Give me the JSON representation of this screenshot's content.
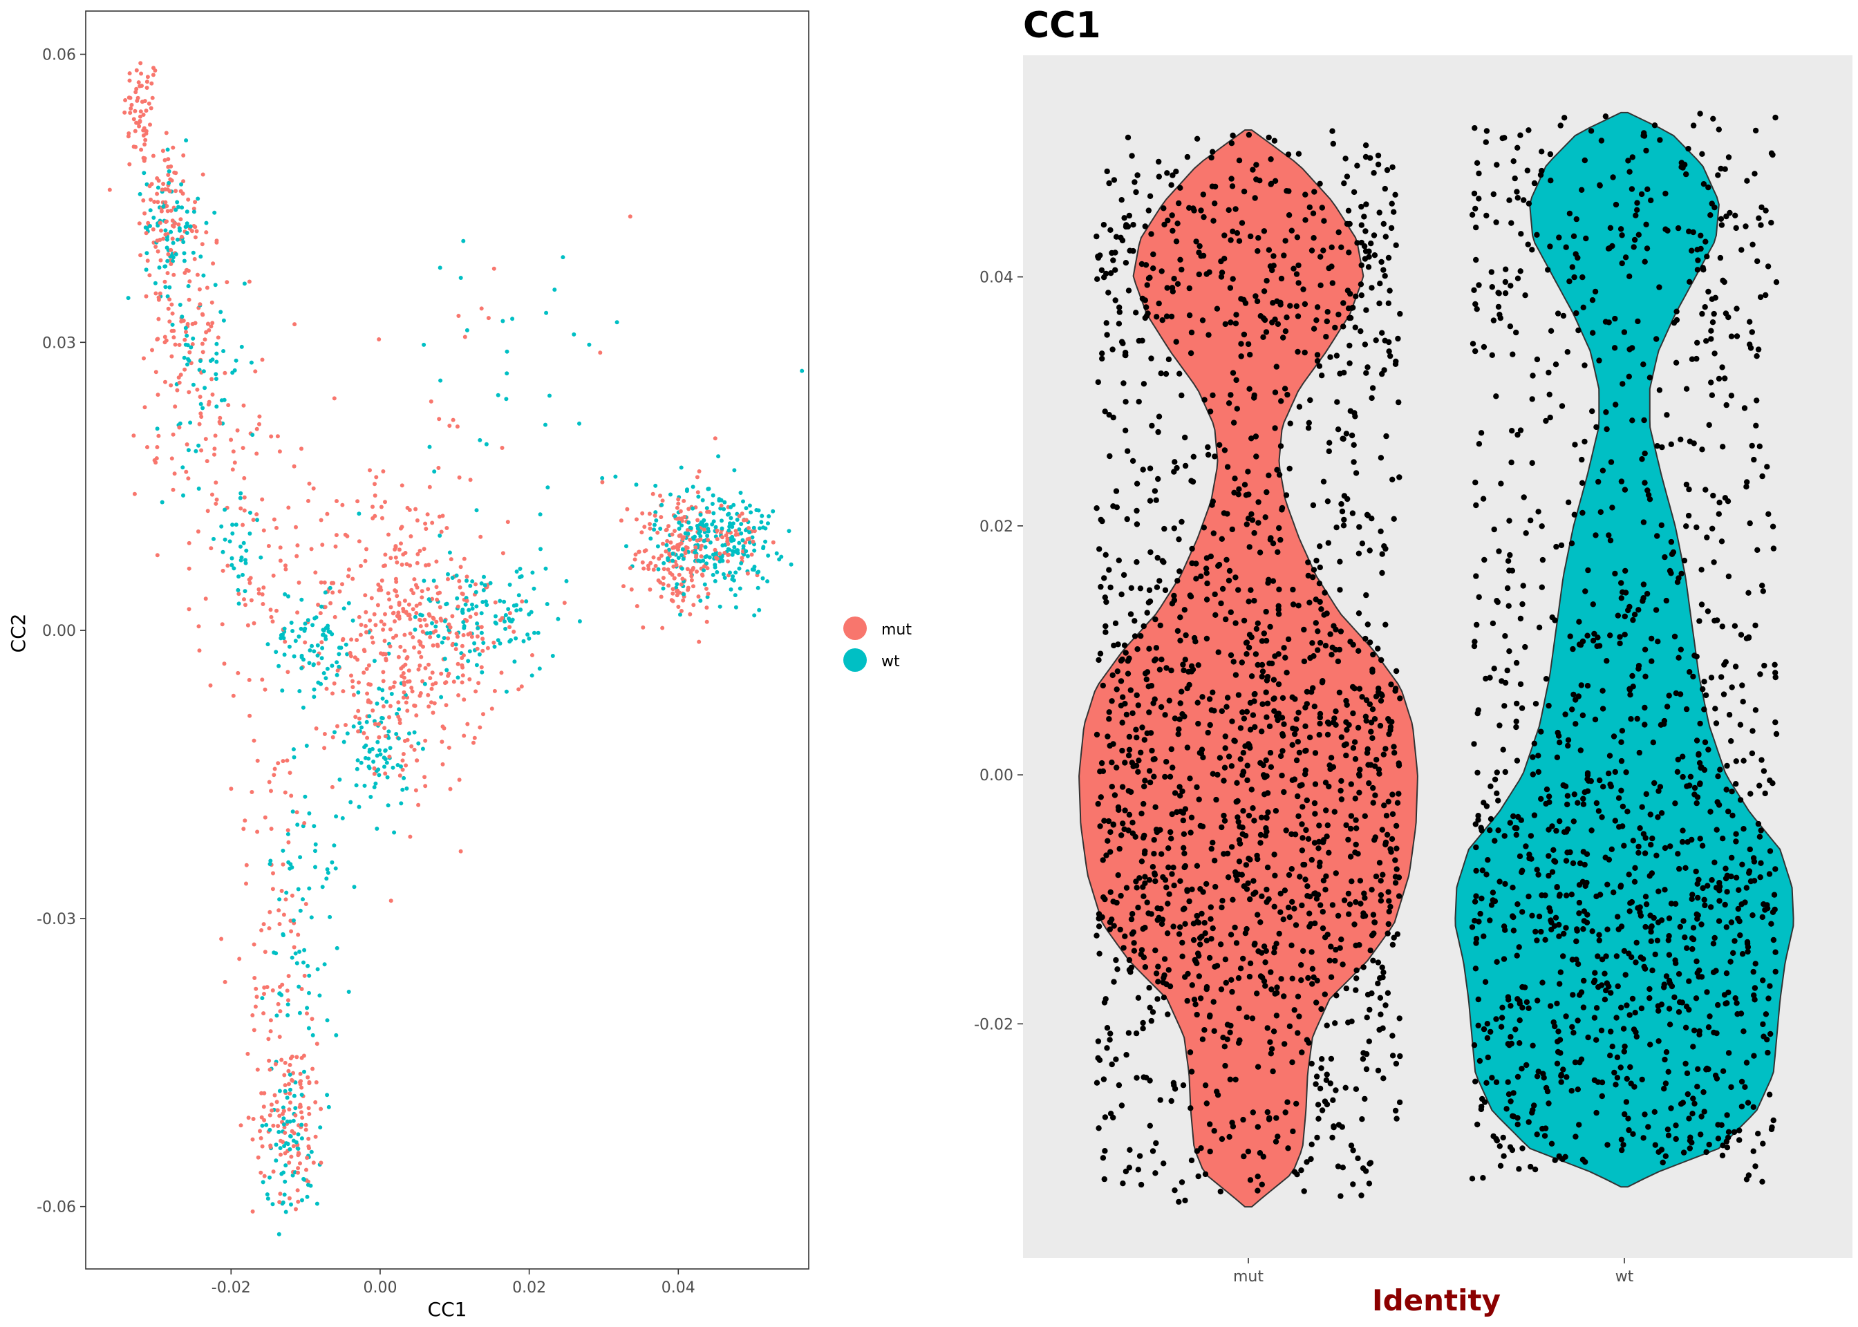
{
  "colors": {
    "mut": "#F8766D",
    "wt": "#00BFC4",
    "jitter_point": "#000000",
    "violin_outline": "#333333",
    "panel_background_right": "#EBEBEB",
    "identity_label": "#8B0000",
    "axis_text": "#4D4D4D"
  },
  "chart_data": [
    {
      "type": "scatter",
      "title": "",
      "xlabel": "CC1",
      "ylabel": "CC2",
      "xlim": [
        -0.0395,
        0.0575
      ],
      "ylim": [
        -0.0665,
        0.0645
      ],
      "x_ticks": [
        -0.02,
        0.0,
        0.02,
        0.04
      ],
      "x_tick_labels": [
        "-0.02",
        "0.00",
        "0.02",
        "0.04"
      ],
      "y_ticks": [
        -0.06,
        -0.03,
        0.0,
        0.03,
        0.06
      ],
      "y_tick_labels": [
        "-0.06",
        "-0.03",
        "0.00",
        "0.03",
        "0.06"
      ],
      "grid": false,
      "legend": {
        "position": "right",
        "entries": [
          {
            "label": "mut",
            "color": "#F8766D"
          },
          {
            "label": "wt",
            "color": "#00BFC4"
          }
        ]
      },
      "series": [
        {
          "name": "mut",
          "clusters": [
            {
              "cx": -0.032,
              "cy": 0.054,
              "sx": 0.0012,
              "sy": 0.003,
              "n": 60
            },
            {
              "cx": -0.029,
              "cy": 0.044,
              "sx": 0.0018,
              "sy": 0.004,
              "n": 80
            },
            {
              "cx": -0.026,
              "cy": 0.033,
              "sx": 0.0025,
              "sy": 0.006,
              "n": 90
            },
            {
              "cx": -0.023,
              "cy": 0.02,
              "sx": 0.004,
              "sy": 0.007,
              "n": 70
            },
            {
              "cx": -0.013,
              "cy": 0.005,
              "sx": 0.006,
              "sy": 0.006,
              "n": 90
            },
            {
              "cx": 0.002,
              "cy": 0.006,
              "sx": 0.004,
              "sy": 0.005,
              "n": 90
            },
            {
              "cx": 0.004,
              "cy": -0.005,
              "sx": 0.005,
              "sy": 0.006,
              "n": 220
            },
            {
              "cx": 0.009,
              "cy": 0.001,
              "sx": 0.006,
              "sy": 0.004,
              "n": 80
            },
            {
              "cx": 0.04,
              "cy": 0.008,
              "sx": 0.003,
              "sy": 0.0035,
              "n": 180
            },
            {
              "cx": 0.047,
              "cy": 0.0095,
              "sx": 0.0025,
              "sy": 0.002,
              "n": 40
            },
            {
              "cx": -0.014,
              "cy": -0.03,
              "sx": 0.003,
              "sy": 0.012,
              "n": 90
            },
            {
              "cx": -0.012,
              "cy": -0.051,
              "sx": 0.0025,
              "sy": 0.004,
              "n": 110
            },
            {
              "cx": 0.01,
              "cy": 0.02,
              "sx": 0.012,
              "sy": 0.015,
              "n": 30
            }
          ]
        },
        {
          "name": "wt",
          "clusters": [
            {
              "cx": -0.028,
              "cy": 0.042,
              "sx": 0.0018,
              "sy": 0.0035,
              "n": 70
            },
            {
              "cx": -0.024,
              "cy": 0.028,
              "sx": 0.003,
              "sy": 0.006,
              "n": 60
            },
            {
              "cx": -0.019,
              "cy": 0.008,
              "sx": 0.0015,
              "sy": 0.0025,
              "n": 30
            },
            {
              "cx": -0.009,
              "cy": -0.001,
              "sx": 0.003,
              "sy": 0.003,
              "n": 80
            },
            {
              "cx": 0.0,
              "cy": -0.012,
              "sx": 0.002,
              "sy": 0.004,
              "n": 80
            },
            {
              "cx": 0.014,
              "cy": 0.001,
              "sx": 0.005,
              "sy": 0.003,
              "n": 120
            },
            {
              "cx": 0.045,
              "cy": 0.0095,
              "sx": 0.004,
              "sy": 0.003,
              "n": 240
            },
            {
              "cx": -0.01,
              "cy": -0.03,
              "sx": 0.0025,
              "sy": 0.01,
              "n": 80
            },
            {
              "cx": -0.012,
              "cy": -0.053,
              "sx": 0.002,
              "sy": 0.004,
              "n": 70
            },
            {
              "cx": 0.015,
              "cy": 0.02,
              "sx": 0.015,
              "sy": 0.012,
              "n": 40
            }
          ]
        }
      ]
    },
    {
      "type": "violin",
      "title": "CC1",
      "xlabel": "Identity",
      "ylabel": "",
      "ylim": [
        -0.0388,
        0.0578
      ],
      "y_ticks": [
        -0.02,
        0.0,
        0.02,
        0.04
      ],
      "y_tick_labels": [
        "-0.02",
        "0.00",
        "0.02",
        "0.04"
      ],
      "categories": [
        "mut",
        "wt"
      ],
      "grid": false,
      "series": [
        {
          "name": "mut",
          "color": "#F8766D",
          "range": [
            -0.0347,
            0.0518
          ],
          "density_profile": [
            [
              -0.0347,
              0.02
            ],
            [
              -0.034,
              0.08
            ],
            [
              -0.032,
              0.26
            ],
            [
              -0.03,
              0.32
            ],
            [
              -0.027,
              0.34
            ],
            [
              -0.024,
              0.35
            ],
            [
              -0.021,
              0.38
            ],
            [
              -0.018,
              0.48
            ],
            [
              -0.015,
              0.7
            ],
            [
              -0.012,
              0.86
            ],
            [
              -0.008,
              0.95
            ],
            [
              -0.004,
              0.99
            ],
            [
              0.0,
              1.0
            ],
            [
              0.004,
              0.97
            ],
            [
              0.007,
              0.9
            ],
            [
              0.01,
              0.74
            ],
            [
              0.013,
              0.54
            ],
            [
              0.016,
              0.4
            ],
            [
              0.019,
              0.3
            ],
            [
              0.022,
              0.22
            ],
            [
              0.025,
              0.18
            ],
            [
              0.028,
              0.2
            ],
            [
              0.031,
              0.3
            ],
            [
              0.034,
              0.46
            ],
            [
              0.037,
              0.6
            ],
            [
              0.04,
              0.68
            ],
            [
              0.043,
              0.64
            ],
            [
              0.046,
              0.5
            ],
            [
              0.049,
              0.3
            ],
            [
              0.0518,
              0.02
            ]
          ],
          "jitter_points": 1700
        },
        {
          "name": "wt",
          "color": "#00BFC4",
          "range": [
            -0.0331,
            0.0532
          ],
          "density_profile": [
            [
              -0.0331,
              0.02
            ],
            [
              -0.032,
              0.18
            ],
            [
              -0.03,
              0.56
            ],
            [
              -0.027,
              0.78
            ],
            [
              -0.024,
              0.88
            ],
            [
              -0.021,
              0.9
            ],
            [
              -0.018,
              0.92
            ],
            [
              -0.015,
              0.95
            ],
            [
              -0.012,
              1.0
            ],
            [
              -0.009,
              0.99
            ],
            [
              -0.006,
              0.92
            ],
            [
              -0.003,
              0.74
            ],
            [
              0.0,
              0.6
            ],
            [
              0.004,
              0.5
            ],
            [
              0.008,
              0.44
            ],
            [
              0.012,
              0.4
            ],
            [
              0.016,
              0.36
            ],
            [
              0.02,
              0.3
            ],
            [
              0.024,
              0.22
            ],
            [
              0.028,
              0.15
            ],
            [
              0.031,
              0.15
            ],
            [
              0.034,
              0.2
            ],
            [
              0.037,
              0.3
            ],
            [
              0.04,
              0.42
            ],
            [
              0.043,
              0.54
            ],
            [
              0.046,
              0.56
            ],
            [
              0.049,
              0.46
            ],
            [
              0.0515,
              0.28
            ],
            [
              0.0532,
              0.02
            ]
          ],
          "jitter_points": 1300
        }
      ]
    }
  ]
}
